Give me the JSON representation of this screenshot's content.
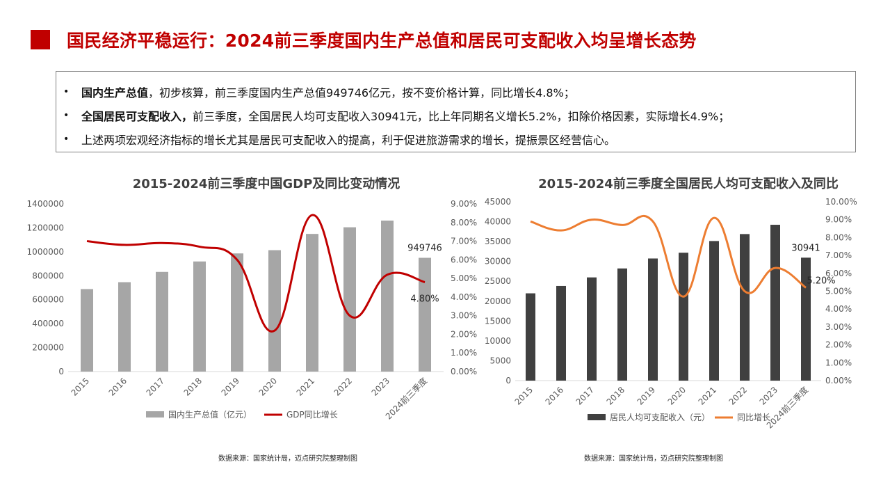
{
  "page": {
    "title": "国民经济平稳运行：2024前三季度国内生产总值和居民可支配收入均呈增长态势"
  },
  "summary": [
    {
      "key": "国内生产总值",
      "text": "，初步核算，前三季度国内生产总值949746亿元，按不变价格计算，同比增长4.8%；"
    },
    {
      "key": "全国居民可支配收入，",
      "text": "前三季度，全国居民人均可支配收入30941元，比上年同期名义增长5.2%，扣除价格因素，实际增长4.9%；"
    },
    {
      "key": "",
      "text": "上述两项宏观经济指标的增长尤其是居民可支配收入的提高，利于促进旅游需求的增长，提振景区经营信心。"
    }
  ],
  "colors": {
    "title": "#c00000",
    "gdp_bar": "#a6a6a6",
    "gdp_line": "#c00000",
    "income_bar": "#404040",
    "income_line": "#ed7d31"
  },
  "chart_data": [
    {
      "type": "bar",
      "title": "2015-2024前三季度中国GDP及同比变动情况",
      "categories": [
        "2015",
        "2016",
        "2017",
        "2018",
        "2019",
        "2020",
        "2021",
        "2022",
        "2023",
        "2024前三季度"
      ],
      "series": [
        {
          "name": "国内生产总值（亿元）",
          "type": "bar",
          "axis": "left",
          "values": [
            688858,
            746395,
            832036,
            919281,
            986515,
            1013567,
            1149237,
            1204724,
            1260582,
            949746
          ]
        },
        {
          "name": "GDP同比增长",
          "type": "line",
          "axis": "right",
          "values": [
            7.0,
            6.8,
            6.9,
            6.7,
            6.0,
            2.2,
            8.4,
            3.0,
            5.2,
            4.8
          ]
        }
      ],
      "ylim_left": [
        0,
        1400000
      ],
      "yticks_left": [
        "1400000",
        "1200000",
        "1000000",
        "800000",
        "600000",
        "400000",
        "200000",
        "0"
      ],
      "ylim_right": [
        0,
        9
      ],
      "yticks_right": [
        "9.00%",
        "8.00%",
        "7.00%",
        "6.00%",
        "5.00%",
        "4.00%",
        "3.00%",
        "2.00%",
        "1.00%",
        "0.00%"
      ],
      "data_labels": {
        "bar_last": "949746",
        "line_last": "4.80%"
      },
      "legend_position": "bottom",
      "source": "数据来源：国家统计局，迈点研究院整理制图"
    },
    {
      "type": "bar",
      "title": "2015-2024前三季度全国居民人均可支配收入及同比",
      "categories": [
        "2015",
        "2016",
        "2017",
        "2018",
        "2019",
        "2020",
        "2021",
        "2022",
        "2023",
        "2024前三季度"
      ],
      "series": [
        {
          "name": "居民人均可支配收入（元）",
          "type": "bar",
          "axis": "left",
          "values": [
            21966,
            23821,
            25974,
            28228,
            30733,
            32189,
            35128,
            36883,
            39218,
            30941
          ]
        },
        {
          "name": "同比增长",
          "type": "line",
          "axis": "right",
          "values": [
            8.9,
            8.4,
            9.0,
            8.7,
            8.9,
            4.7,
            9.1,
            5.0,
            6.3,
            5.2
          ]
        }
      ],
      "ylim_left": [
        0,
        45000
      ],
      "yticks_left": [
        "45000",
        "40000",
        "35000",
        "30000",
        "25000",
        "20000",
        "15000",
        "10000",
        "5000",
        "0"
      ],
      "ylim_right": [
        0,
        10
      ],
      "yticks_right": [
        "10.00%",
        "9.00%",
        "8.00%",
        "7.00%",
        "6.00%",
        "5.00%",
        "4.00%",
        "3.00%",
        "2.00%",
        "1.00%",
        "0.00%"
      ],
      "data_labels": {
        "bar_last": "30941",
        "line_last": "5.20%"
      },
      "legend_position": "bottom",
      "source": "数据来源：国家统计局，迈点研究院整理制图"
    }
  ]
}
